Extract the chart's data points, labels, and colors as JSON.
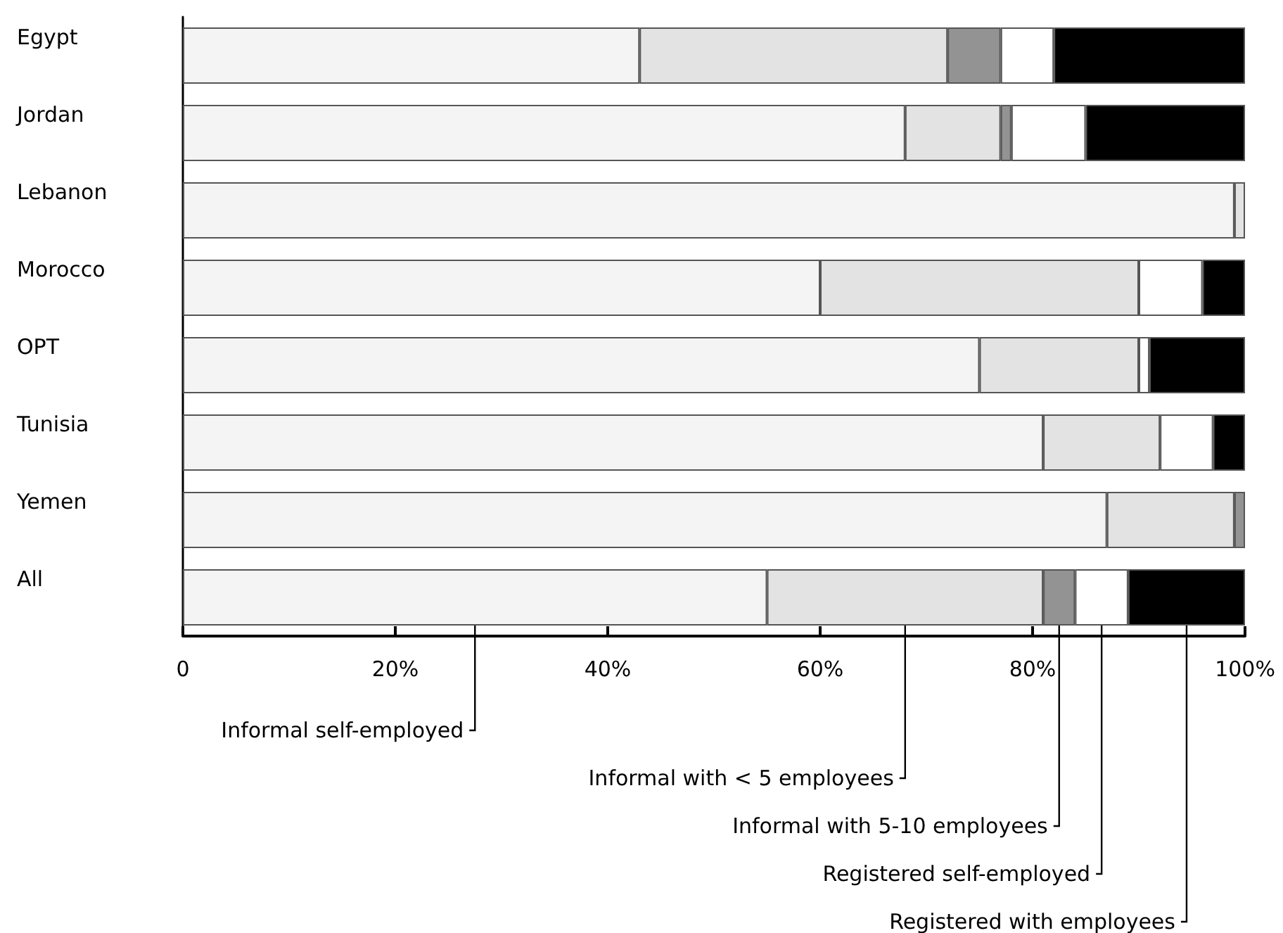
{
  "chart_data": {
    "type": "bar",
    "orientation": "horizontal",
    "stacked": true,
    "categories": [
      "Egypt",
      "Jordan",
      "Lebanon",
      "Morocco",
      "OPT",
      "Tunisia",
      "Yemen",
      "All"
    ],
    "series": [
      {
        "name": "Informal self-employed",
        "color": "#f4f4f4",
        "values": [
          43,
          68,
          99,
          60,
          75,
          81,
          87,
          55
        ]
      },
      {
        "name": "Informal with < 5 employees",
        "color": "#e3e3e3",
        "values": [
          29,
          9,
          1,
          30,
          15,
          11,
          12,
          26
        ]
      },
      {
        "name": "Informal with 5-10 employees",
        "color": "#939393",
        "values": [
          5,
          1,
          0,
          0,
          0,
          0,
          1,
          3
        ]
      },
      {
        "name": "Registered self-employed",
        "color": "#ffffff",
        "values": [
          5,
          7,
          0,
          6,
          1,
          5,
          0,
          5
        ]
      },
      {
        "name": "Registered with employees",
        "color": "#000000",
        "values": [
          18,
          15,
          0,
          4,
          9,
          3,
          0,
          11
        ]
      }
    ],
    "xlim": [
      0,
      100
    ],
    "xticks": [
      {
        "value": 0,
        "label": "0"
      },
      {
        "value": 20,
        "label": "20%"
      },
      {
        "value": 40,
        "label": "40%"
      },
      {
        "value": 60,
        "label": "60%"
      },
      {
        "value": 80,
        "label": "80%"
      },
      {
        "value": 100,
        "label": "100%"
      }
    ],
    "grid": false,
    "legend": false
  }
}
